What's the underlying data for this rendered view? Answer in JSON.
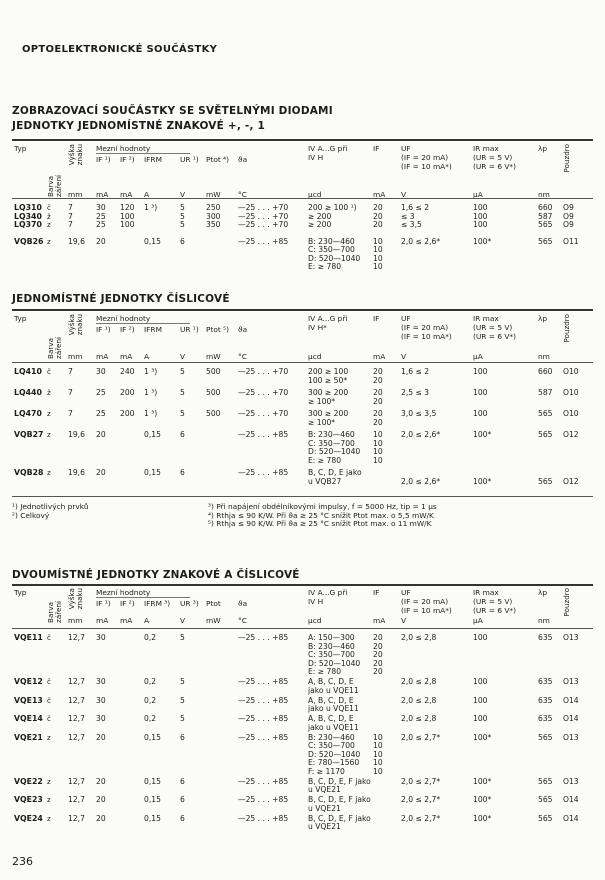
{
  "page_title": "OPTOELEKTRONICKÉ SOUČÁSTKY",
  "page_number": "236",
  "sections": [
    {
      "title": "ZOBRAZOVACÍ SOUČÁSTKY SE SVĚTELNÝMI DIODAMI\nJEDNOTKY JEDNOMÍSTNÉ ZNAKOVÉ +, -, 1",
      "header": {
        "typ": "Typ",
        "barva": "Barva\nzáření",
        "vyska": "Výška\nznaku",
        "mezni": "Mezní hodnoty",
        "cols": [
          "IF ¹)",
          "IF ²)",
          "IFRM",
          "UR ¹)",
          "Ptot ⁴)",
          "ϑa"
        ],
        "units": [
          "mm",
          "mA",
          "mA",
          "A",
          "V",
          "mW",
          "°C",
          "µcd",
          "mA",
          "V",
          "µA",
          "nm"
        ],
        "iv": "IV A...G   při\nIV H",
        "if": "IF",
        "uf": "UF\n(IF = 20 mA)\n(IF = 10 mA*)",
        "ir": "IR max\n(UR = 5 V)\n(UR = 6 V*)",
        "lambda": "λp",
        "pouzdro": "Pouzdro"
      },
      "rows": [
        [
          "LQ310",
          "č",
          "7",
          "30",
          "120",
          "1 ³)",
          "5",
          "250",
          "—25 . . . +70",
          "200 ≥ 100 ¹)",
          "20",
          "1,6 ≤ 2",
          "100",
          "660",
          "O9"
        ],
        [
          "LQ340",
          "ž",
          "7",
          "25",
          "100",
          "",
          "5",
          "300",
          "—25 . . . +70",
          "≥ 200",
          "20",
          "≤ 3",
          "100",
          "587",
          "O9"
        ],
        [
          "LQ370",
          "z",
          "7",
          "25",
          "100",
          "",
          "5",
          "350",
          "—25 . . . +70",
          "≥ 200",
          "20",
          "≤ 3,5",
          "100",
          "565",
          "O9"
        ],
        [
          "VQB26",
          "z",
          "19,6",
          "20",
          "",
          "0,15",
          "6",
          "",
          "—25 . . . +85",
          "B: 230—460\nC: 350—700\nD: 520—1040\nE:      ≥ 780",
          "10\n10\n10\n10",
          "2,0 ≤ 2,6*",
          "100*",
          "565",
          "O11"
        ]
      ]
    },
    {
      "title": "JEDNOMÍSTNÉ JEDNOTKY ČÍSLICOVÉ",
      "header": {
        "typ": "Typ",
        "barva": "Barva\nzáření",
        "vyska": "Výška\nznaku",
        "mezni": "Mezní hodnoty",
        "cols": [
          "IF ¹)",
          "IF ²)",
          "IFRM",
          "UR ¹)",
          "Ptot ⁵)",
          "ϑa"
        ],
        "units": [
          "mm",
          "mA",
          "mA",
          "A",
          "V",
          "mW",
          "°C",
          "µcd",
          "mA",
          "V",
          "µA",
          "nm"
        ],
        "iv": "IV A...G   při\nIV H*",
        "if": "IF",
        "uf": "UF\n(IF = 20 mA)\n(IF = 10 mA*)",
        "ir": "IR max\n(UR = 5 V)\n(UR = 6 V*)",
        "lambda": "λp",
        "pouzdro": "Pouzdro"
      },
      "rows": [
        [
          "LQ410",
          "č",
          "7",
          "30",
          "240",
          "1 ³)",
          "5",
          "500",
          "—25 . . . +70",
          "200 ≥ 100\n100 ≥ 50*",
          "20\n20",
          "1,6 ≤ 2",
          "100",
          "660",
          "O10"
        ],
        [
          "LQ440",
          "ž",
          "7",
          "25",
          "200",
          "1 ³)",
          "5",
          "500",
          "—25 . . . +70",
          "300 ≥ 200\n      ≥ 100*",
          "20\n20",
          "2,5 ≤ 3",
          "100",
          "587",
          "O10"
        ],
        [
          "LQ470",
          "z",
          "7",
          "25",
          "200",
          "1 ³)",
          "5",
          "500",
          "—25 . . . +70",
          "300 ≥ 200\n      ≥ 100*",
          "20\n20",
          "3,0 ≤ 3,5",
          "100",
          "565",
          "O10"
        ],
        [
          "VQB27",
          "z",
          "19,6",
          "20",
          "",
          "0,15",
          "6",
          "",
          "—25 . . . +85",
          "B: 230—460\nC: 350—700\nD: 520—1040\nE:      ≥ 780",
          "10\n10\n10\n10",
          "2,0 ≤ 2,6*",
          "100*",
          "565",
          "O12"
        ],
        [
          "VQB28",
          "z",
          "19,6",
          "20",
          "",
          "0,15",
          "6",
          "",
          "—25 . . . +85",
          "B, C, D, E jako\nu VQB27",
          "",
          "\n2,0 ≤ 2,6*",
          "\n100*",
          "\n565",
          "\nO12"
        ]
      ],
      "footnotes": {
        "left": "¹)  Jednotlivých prvků\n²)  Celkový",
        "right": "³)  Při napájení obdélníkovými impulsy, f = 5000 Hz, tip = 1 µs\n⁴)  Rthja ≤ 90 K/W.  Při ϑa ≥ 25 °C snížit Ptot max. o 5,5 mW/K\n⁵)  Rthja ≤ 90 K/W.  Při ϑa ≥ 25 °C snížit Ptot max. o 11 mW/K"
      }
    },
    {
      "title": "DVOUMÍSTNÉ JEDNOTKY ZNAKOVÉ A ČÍSLICOVÉ",
      "header": {
        "typ": "Typ",
        "barva": "Barva\nzáření",
        "vyska": "Výška\nznaku",
        "mezni": "Mezní hodnoty",
        "cols": [
          "IF ¹)",
          "IF ²)",
          "IFRM ³)",
          "UR ³)",
          "Ptot",
          "ϑa"
        ],
        "units": [
          "mm",
          "mA",
          "mA",
          "A",
          "V",
          "mW",
          "°C",
          "µcd",
          "mA",
          "V",
          "µA",
          "nm"
        ],
        "iv": "IV A...G   při\nIV H",
        "if": "IF",
        "uf": "UF\n(IF = 20 mA)\n(IF = 10 mA*)",
        "ir": "IR max\n(UR = 5 V)\n(UR = 6 V*)",
        "lambda": "λp",
        "pouzdro": "Pouzdro"
      },
      "rows": [
        [
          "VQE11",
          "č",
          "12,7",
          "30",
          "",
          "0,2",
          "5",
          "",
          "—25 . . . +85",
          "A: 150—300\nB: 230—460\nC: 350—700\nD: 520—1040\nE:      ≥ 780",
          "20\n20\n20\n20\n20",
          "2,0 ≤ 2,8",
          "100",
          "635",
          "O13"
        ],
        [
          "VQE12",
          "č",
          "12,7",
          "30",
          "",
          "0,2",
          "5",
          "",
          "—25 . . . +85",
          "A, B, C, D, E\njako u VQE11",
          "",
          "2,0 ≤ 2,8",
          "100",
          "635",
          "O13"
        ],
        [
          "VQE13",
          "č",
          "12,7",
          "30",
          "",
          "0,2",
          "5",
          "",
          "—25 . . . +85",
          "A, B, C, D, E\njako u VQE11",
          "",
          "2,0 ≤ 2,8",
          "100",
          "635",
          "O14"
        ],
        [
          "VQE14",
          "č",
          "12,7",
          "30",
          "",
          "0,2",
          "5",
          "",
          "—25 . . . +85",
          "A, B, C, D, E\njako u VQE11",
          "",
          "2,0 ≤ 2,8",
          "100",
          "635",
          "O14"
        ],
        [
          "VQE21",
          "z",
          "12,7",
          "20",
          "",
          "0,15",
          "6",
          "",
          "—25 . . . +85",
          "B: 230—460\nC: 350—700\nD: 520—1040\nE: 780—1560\nF:      ≥ 1170",
          "10\n10\n10\n10\n10",
          "2,0 ≤ 2,7*",
          "100*",
          "565",
          "O13"
        ],
        [
          "VQE22",
          "z",
          "12,7",
          "20",
          "",
          "0,15",
          "6",
          "",
          "—25 . . . +85",
          "B, C, D, E, F jako\nu VQE21",
          "",
          "2,0 ≤ 2,7*",
          "100*",
          "565",
          "O13"
        ],
        [
          "VQE23",
          "z",
          "12,7",
          "20",
          "",
          "0,15",
          "6",
          "",
          "—25 . . . +85",
          "B, C, D, E, F jako\nu VQE21",
          "",
          "2,0 ≤ 2,7*",
          "100*",
          "565",
          "O14"
        ],
        [
          "VQE24",
          "z",
          "12,7",
          "20",
          "",
          "0,15",
          "6",
          "",
          "—25 . . . +85",
          "B, C, D, E, F jako\nu VQE21",
          "",
          "2,0 ≤ 2,7*",
          "100*",
          "565",
          "O14"
        ]
      ]
    }
  ]
}
